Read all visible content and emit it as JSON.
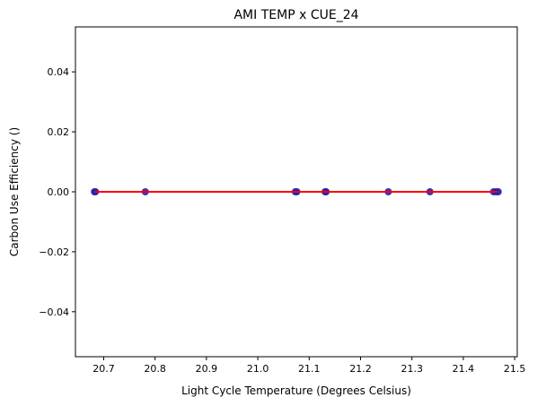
{
  "chart_data": {
    "type": "scatter",
    "title": "AMI TEMP x CUE_24",
    "xlabel": "Light Cycle Temperature (Degrees Celsius)",
    "ylabel": "Carbon Use Efficiency ()",
    "xlim": [
      20.645,
      21.505
    ],
    "ylim": [
      -0.055,
      0.055
    ],
    "x_ticks": [
      20.7,
      20.8,
      20.9,
      21.0,
      21.1,
      21.2,
      21.3,
      21.4,
      21.5
    ],
    "x_tick_labels": [
      "20.7",
      "20.8",
      "20.9",
      "21.0",
      "21.1",
      "21.2",
      "21.3",
      "21.4",
      "21.5"
    ],
    "y_ticks": [
      -0.04,
      -0.02,
      0.0,
      0.02,
      0.04
    ],
    "y_tick_labels": [
      "−0.04",
      "−0.02",
      "0.00",
      "0.02",
      "0.04"
    ],
    "grid": false,
    "series": [
      {
        "kind": "points",
        "color": "#1f1fb4",
        "x": [
          20.682,
          20.684,
          20.781,
          21.073,
          21.076,
          21.131,
          21.133,
          21.254,
          21.335,
          21.459,
          21.464,
          21.468
        ],
        "y": [
          0,
          0,
          0,
          0,
          0,
          0,
          0,
          0,
          0,
          0,
          0,
          0
        ]
      },
      {
        "kind": "fit-line",
        "color": "#ff0000",
        "x": [
          20.682,
          21.468
        ],
        "y": [
          0,
          0
        ]
      }
    ]
  }
}
